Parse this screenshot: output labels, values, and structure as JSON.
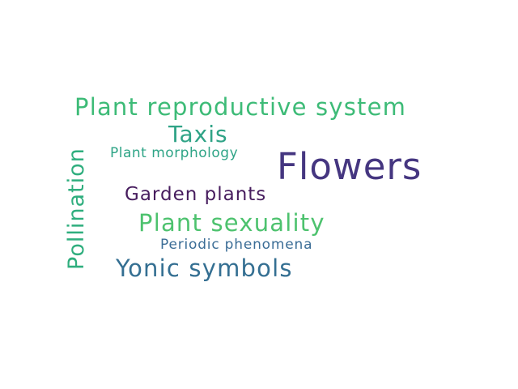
{
  "word_cloud": {
    "words": [
      {
        "key": "reproductive",
        "text": "Plant reproductive system",
        "color": "#3dbb77"
      },
      {
        "key": "taxis",
        "text": "Taxis",
        "color": "#2fa386"
      },
      {
        "key": "morphology",
        "text": "Plant morphology",
        "color": "#2ea486"
      },
      {
        "key": "flowers",
        "text": "Flowers",
        "color": "#453680"
      },
      {
        "key": "garden",
        "text": "Garden plants",
        "color": "#471d5e"
      },
      {
        "key": "sexuality",
        "text": "Plant sexuality",
        "color": "#4dc26e"
      },
      {
        "key": "periodic",
        "text": "Periodic phenomena",
        "color": "#3b6d96"
      },
      {
        "key": "yonic",
        "text": "Yonic symbols",
        "color": "#346f92"
      },
      {
        "key": "pollination",
        "text": "Pollination",
        "color": "#2fae7e"
      }
    ]
  }
}
